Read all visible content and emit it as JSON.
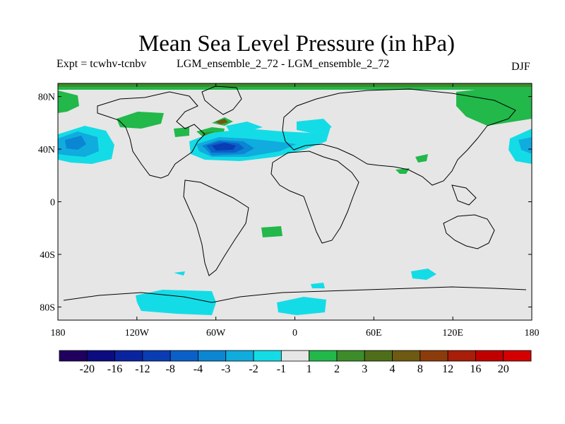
{
  "header": {
    "title": "Mean Sea Level Pressure (in hPa)",
    "experiment": "Expt = tcwhv-tcnbv",
    "comparison": "LGM_ensemble_2_72 - LGM_ensemble_2_72",
    "season": "DJF"
  },
  "map": {
    "lat_labels": [
      "80N",
      "40N",
      "0",
      "40S",
      "80S"
    ],
    "lon_labels": [
      "180",
      "120W",
      "60W",
      "0",
      "60E",
      "120E",
      "180"
    ],
    "ocean_fill": "#e6e6e6",
    "coast_color": "#000000"
  },
  "colorbar": {
    "labels": [
      "-20",
      "-16",
      "-12",
      "-8",
      "-4",
      "-3",
      "-2",
      "-1",
      "1",
      "2",
      "3",
      "4",
      "8",
      "12",
      "16",
      "20"
    ],
    "colors": [
      "#20005f",
      "#0c0c80",
      "#0a24a0",
      "#0a3cb4",
      "#0a60c8",
      "#0a86d2",
      "#10acde",
      "#14dce6",
      "#e6e6e6",
      "#22b84a",
      "#3c8c2a",
      "#4e6e1a",
      "#6e5a10",
      "#8c3c0a",
      "#a81e08",
      "#c00000",
      "#d40000"
    ]
  }
}
